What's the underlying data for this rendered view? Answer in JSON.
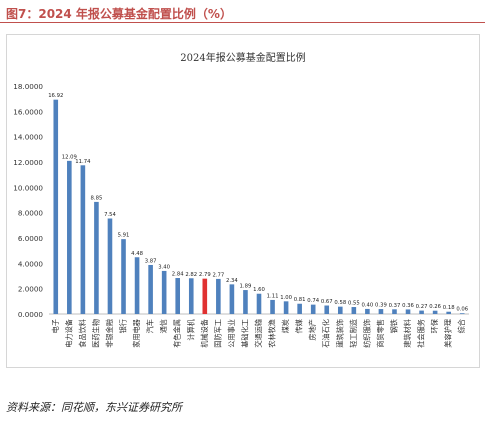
{
  "figure_title": "图7：2024 年报公募基金配置比例（%）",
  "source_note": "资料来源：同花顺，东兴证券研究所",
  "colors": {
    "bar": "#4f81bd",
    "highlight_bar": "#e03131",
    "title": "#c0504d"
  },
  "chart_data": {
    "type": "bar",
    "title": "2024年报公募基金配置比例",
    "xlabel": "",
    "ylabel": "",
    "ylim": [
      0,
      18
    ],
    "yticks": [
      0,
      2,
      4,
      6,
      8,
      10,
      12,
      14,
      16,
      18
    ],
    "ytick_labels": [
      "0.0000",
      "2.0000",
      "4.0000",
      "6.0000",
      "8.0000",
      "10.0000",
      "12.0000",
      "14.0000",
      "16.0000",
      "18.0000"
    ],
    "grid": false,
    "legend": "none",
    "categories": [
      "电子",
      "电力设备",
      "食品饮料",
      "医药生物",
      "非银金融",
      "银行",
      "家用电器",
      "汽车",
      "通信",
      "有色金属",
      "计算机",
      "机械设备",
      "国防军工",
      "公用事业",
      "基础化工",
      "交通运输",
      "农林牧渔",
      "煤炭",
      "传媒",
      "房地产",
      "石油石化",
      "建筑装饰",
      "轻工制造",
      "纺织服饰",
      "商贸零售",
      "钢铁",
      "建筑材料",
      "社会服务",
      "环保",
      "美容护理",
      "综合"
    ],
    "values": [
      16.92,
      12.09,
      11.74,
      8.85,
      7.54,
      5.91,
      4.48,
      3.87,
      3.4,
      2.84,
      2.82,
      2.79,
      2.77,
      2.34,
      1.89,
      1.6,
      1.11,
      1.0,
      0.81,
      0.74,
      0.67,
      0.58,
      0.55,
      0.4,
      0.39,
      0.37,
      0.36,
      0.27,
      0.26,
      0.18,
      0.06
    ],
    "value_labels": [
      "16.92",
      "12.09",
      "11.74",
      "8.85",
      "7.54",
      "5.91",
      "4.48",
      "3.87",
      "3.40",
      "2.84",
      "2.82",
      "2.79",
      "2.77",
      "2.34",
      "1.89",
      "1.60",
      "1.11",
      "1.00",
      "0.81",
      "0.74",
      "0.67",
      "0.58",
      "0.55",
      "0.40",
      "0.39",
      "0.37",
      "0.36",
      "0.27",
      "0.26",
      "0.18",
      "0.06"
    ],
    "highlight_category": "机械设备"
  }
}
